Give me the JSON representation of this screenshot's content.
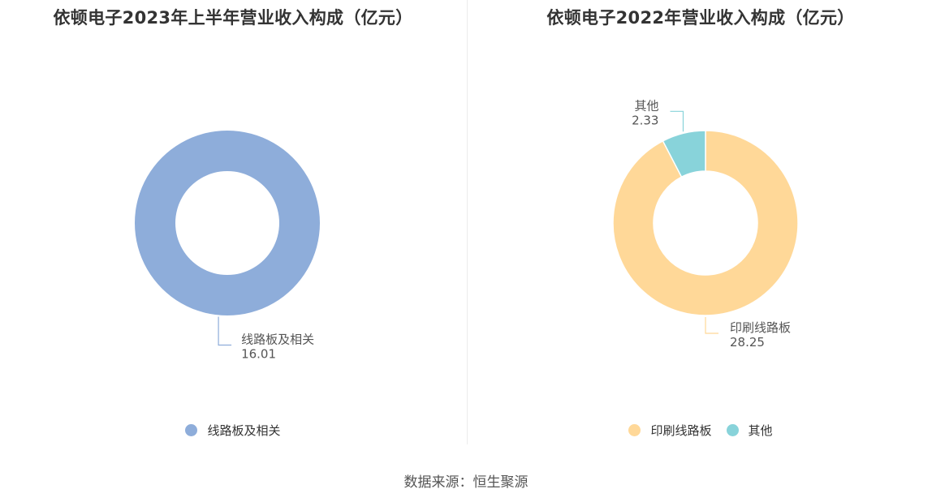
{
  "chart_data": [
    {
      "type": "pie",
      "title": "依顿电子2023年上半年营业收入构成（亿元）",
      "categories": [
        "线路板及相关"
      ],
      "values": [
        16.01
      ],
      "value_labels": [
        "16.01"
      ],
      "colors": [
        "#8eadda"
      ],
      "legend": "bottom-center"
    },
    {
      "type": "pie",
      "title": "依顿电子2022年营业收入构成（亿元）",
      "categories": [
        "印刷线路板",
        "其他"
      ],
      "values": [
        28.25,
        2.33
      ],
      "value_labels": [
        "28.25",
        "2.33"
      ],
      "colors": [
        "#ffd898",
        "#88d3da"
      ],
      "legend": "bottom-center"
    }
  ],
  "source": "数据来源：恒生聚源"
}
